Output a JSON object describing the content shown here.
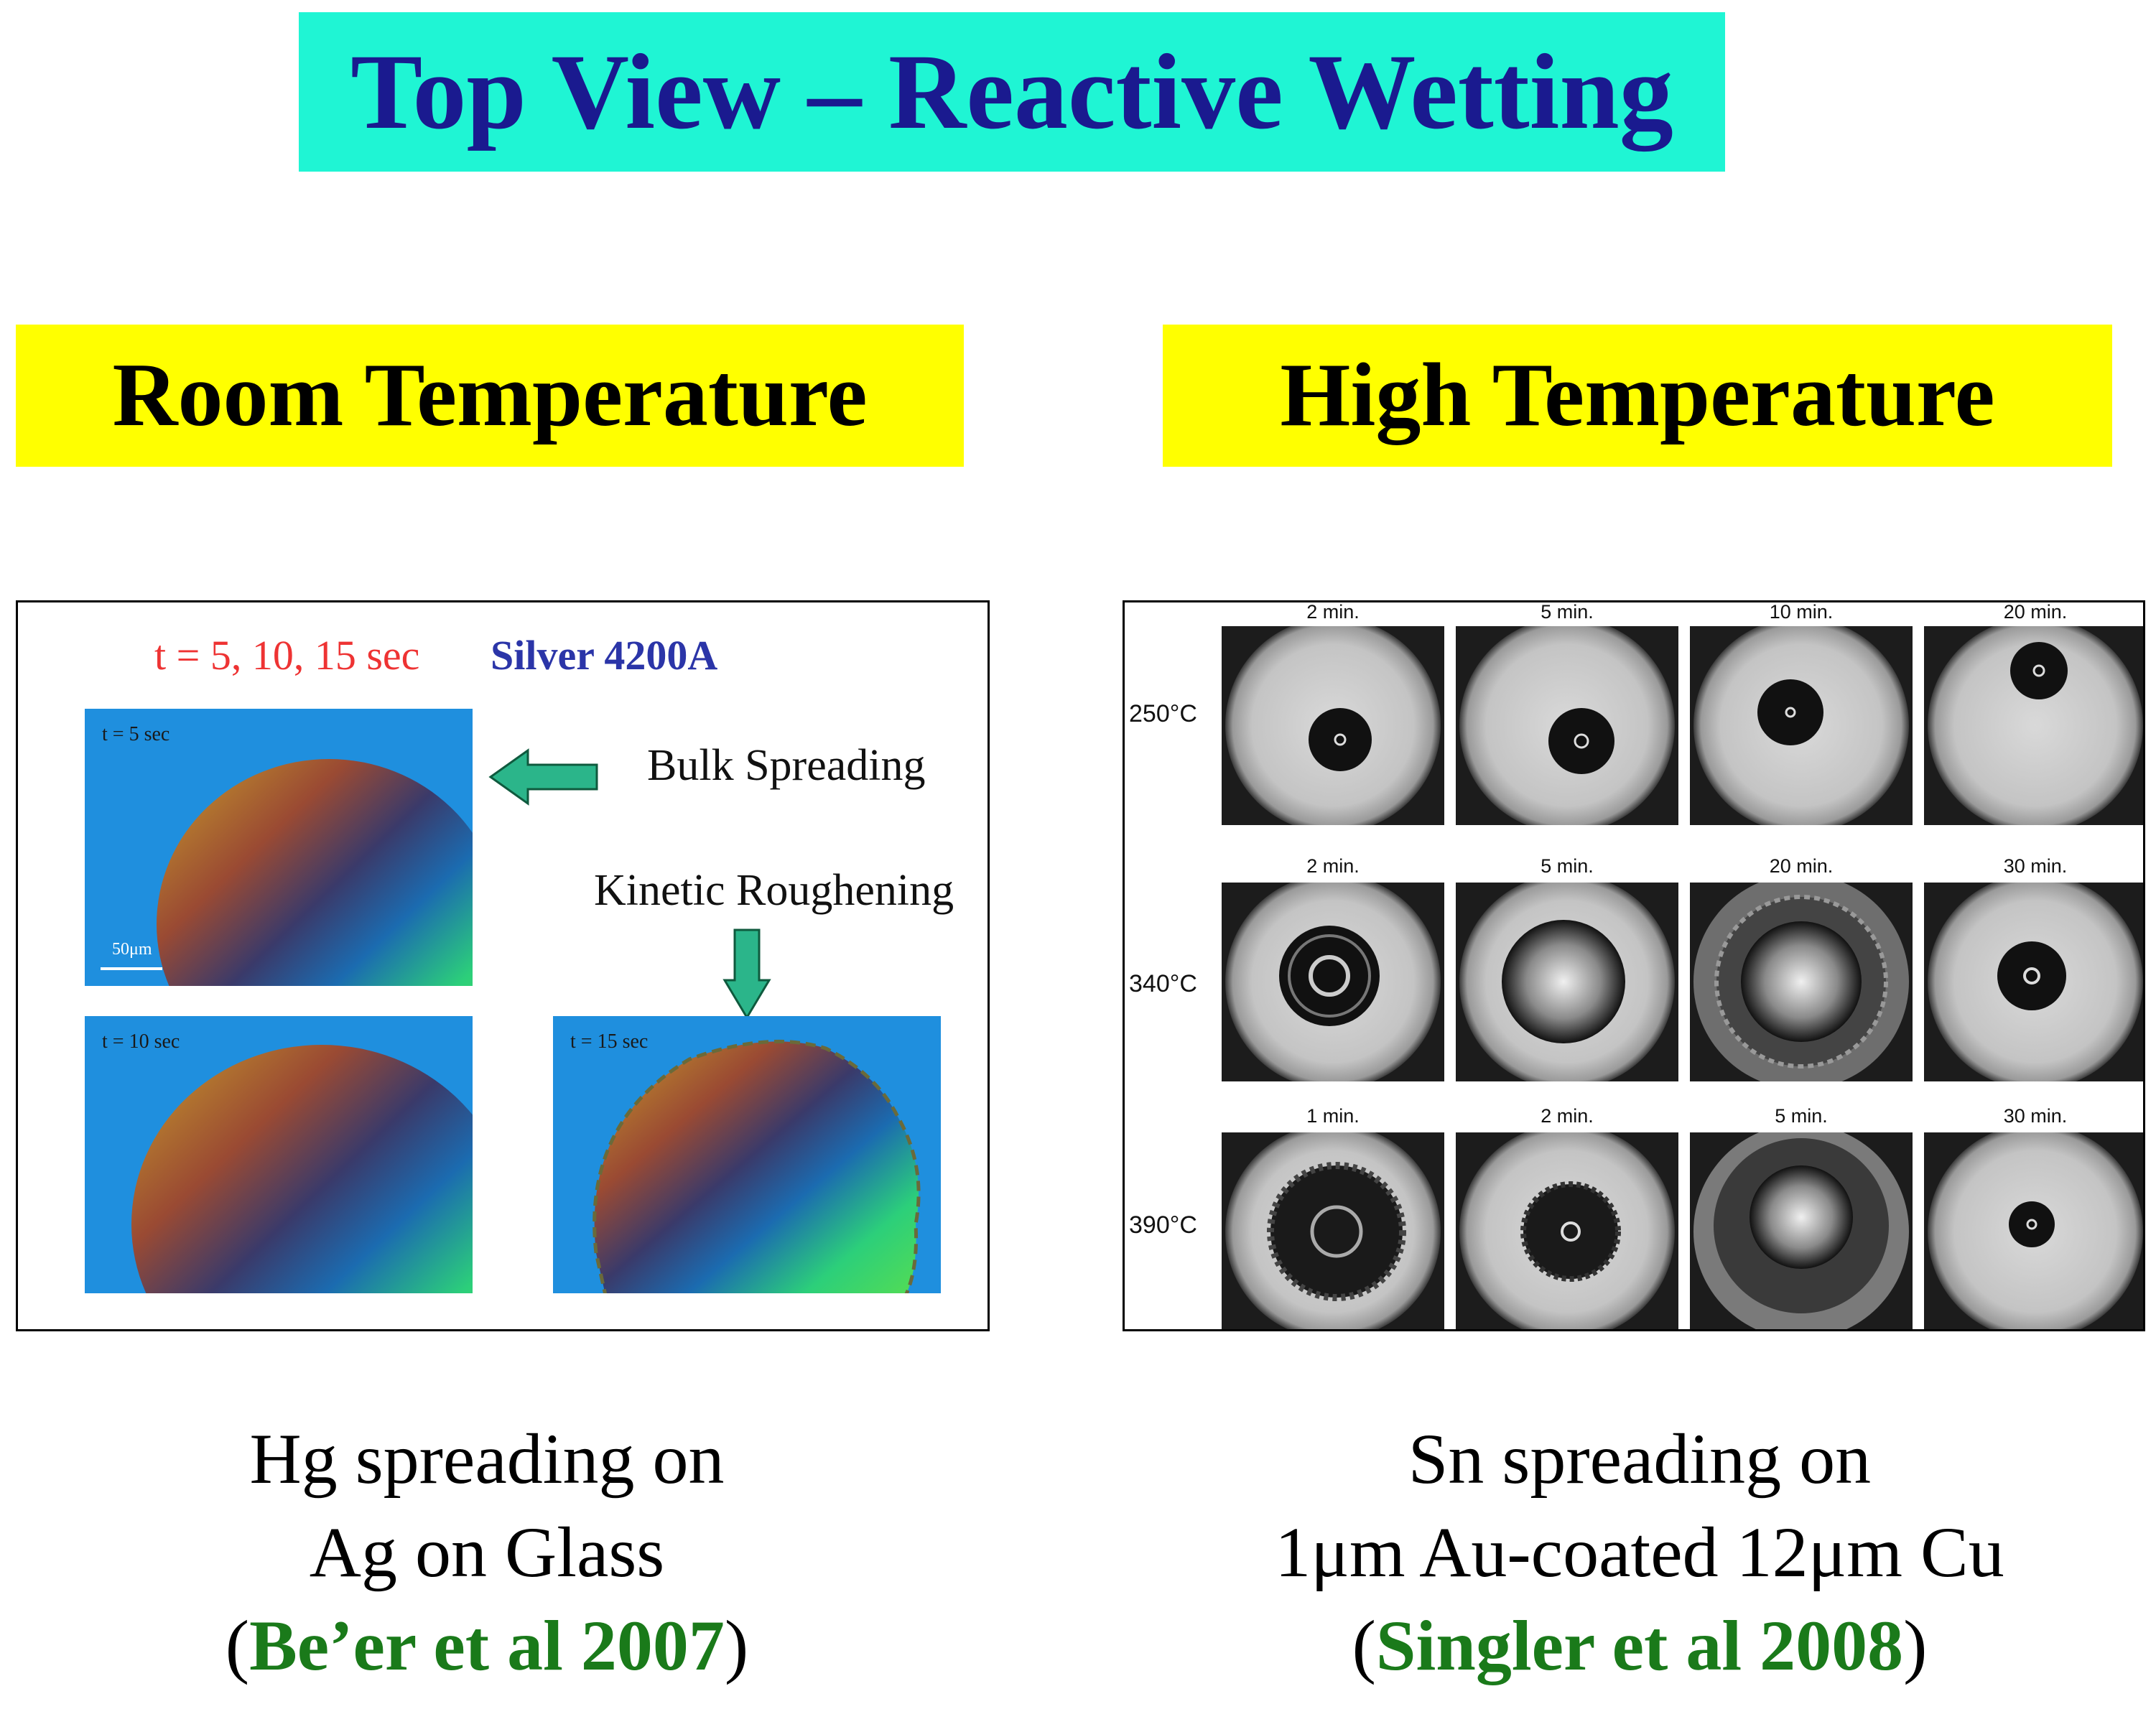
{
  "title": "Top View – Reactive Wetting",
  "headers": {
    "room": "Room Temperature",
    "high": "High Temperature"
  },
  "left_figure": {
    "times_label": "t = 5, 10, 15 sec",
    "sample_label": "Silver 4200A",
    "bulk_label": "Bulk Spreading",
    "kinetic_label": "Kinetic Roughening",
    "panels": [
      "t = 5 sec",
      "t = 10 sec",
      "t = 15 sec"
    ],
    "scale": "50μm"
  },
  "right_figure": {
    "rows": [
      {
        "temp": "250°C",
        "times": [
          "2 min.",
          "5 min.",
          "10 min.",
          "20 min."
        ]
      },
      {
        "temp": "340°C",
        "times": [
          "2 min.",
          "5 min.",
          "20 min.",
          "30 min."
        ]
      },
      {
        "temp": "390°C",
        "times": [
          "1 min.",
          "2 min.",
          "5 min.",
          "30 min."
        ]
      }
    ]
  },
  "captions": {
    "left": {
      "line1": "Hg spreading on",
      "line2": "Ag on Glass",
      "open": "(",
      "ref": "Be’er et al 2007",
      "close": ")"
    },
    "right": {
      "line1": "Sn spreading on",
      "line2": "1μm Au-coated 12μm Cu",
      "open": "(",
      "ref": "Singler et al 2008",
      "close": ")"
    }
  },
  "colors": {
    "title_bg": "#1ff5d4",
    "title_text": "#1a1a8f",
    "header_bg": "#ffff00",
    "reference": "#1a7a1a",
    "arrow": "#2bb58a"
  }
}
